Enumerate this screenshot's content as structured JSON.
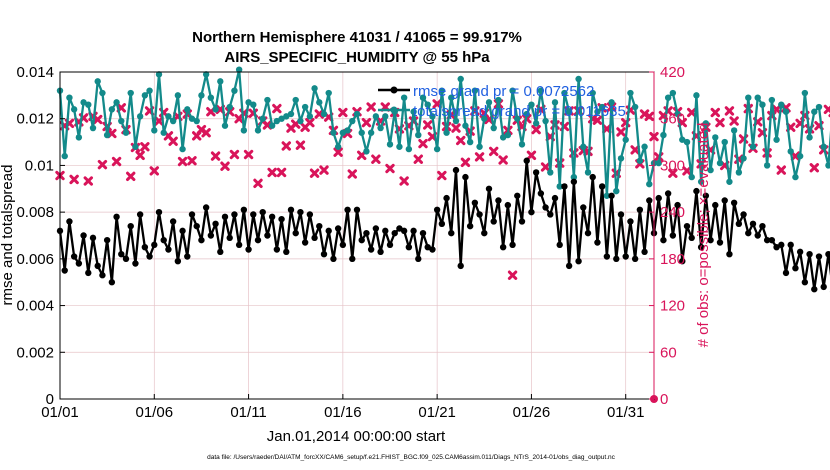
{
  "chart_data": {
    "type": "line",
    "title": "Northern Hemisphere 41031 / 41065 = 99.917%",
    "subtitle": "AIRS_SPECIFIC_HUMIDITY @ 55 hPa",
    "xlabel": "Jan.01,2014 00:00:00 start",
    "ylabel": "rmse and totalspread",
    "y2label": "# of obs: o=possible; ×=evaluated",
    "footnote": "data file: /Users/raeder/DAI/ATM_forcXX/CAM6_setup/f.e21.FHIST_BGC.f09_025.CAM6assim.011/Diags_NTrS_2014-01/obs_diag_output.nc",
    "x_tick_labels": [
      "01/01",
      "01/06",
      "01/11",
      "01/16",
      "01/21",
      "01/26",
      "01/31"
    ],
    "x_tick_days": [
      0,
      5,
      10,
      15,
      20,
      25,
      30
    ],
    "xlim": [
      0,
      31.5
    ],
    "ylim": [
      0,
      0.014
    ],
    "y_ticks": [
      "0",
      "0.002",
      "0.004",
      "0.006",
      "0.008",
      "0.01",
      "0.012",
      "0.014"
    ],
    "y_tick_values": [
      0,
      0.002,
      0.004,
      0.006,
      0.008,
      0.01,
      0.012,
      0.014
    ],
    "y2lim": [
      0,
      420
    ],
    "y2_ticks": [
      "0",
      "60",
      "120",
      "180",
      "240",
      "300",
      "360",
      "420"
    ],
    "y2_tick_values": [
      0,
      60,
      120,
      180,
      240,
      300,
      360,
      420
    ],
    "series": [
      {
        "name": "rmse grand pr = 0.0072562",
        "color": "#000000",
        "axis": "left",
        "start_day": 0,
        "step_days": 0.25,
        "values": [
          0.0072,
          0.0055,
          0.0076,
          0.0061,
          0.0058,
          0.007,
          0.0054,
          0.0069,
          0.0057,
          0.0053,
          0.0068,
          0.005,
          0.0078,
          0.0062,
          0.006,
          0.0074,
          0.0058,
          0.0079,
          0.0065,
          0.0061,
          0.0066,
          0.008,
          0.0068,
          0.0064,
          0.0076,
          0.0059,
          0.0072,
          0.0061,
          0.0079,
          0.0074,
          0.0068,
          0.0082,
          0.007,
          0.0075,
          0.0063,
          0.0078,
          0.0069,
          0.0079,
          0.0066,
          0.0081,
          0.0064,
          0.0079,
          0.0068,
          0.008,
          0.007,
          0.0078,
          0.0064,
          0.0077,
          0.0063,
          0.0081,
          0.0071,
          0.008,
          0.0067,
          0.0079,
          0.0069,
          0.0074,
          0.0062,
          0.0072,
          0.006,
          0.0073,
          0.0066,
          0.0081,
          0.006,
          0.0081,
          0.0068,
          0.0071,
          0.0064,
          0.0073,
          0.0063,
          0.0072,
          0.0066,
          0.0071,
          0.0073,
          0.0072,
          0.0065,
          0.0072,
          0.006,
          0.0071,
          0.0065,
          0.0064,
          0.0081,
          0.0075,
          0.0086,
          0.0071,
          0.0098,
          0.0057,
          0.0095,
          0.0074,
          0.0084,
          0.0079,
          0.0071,
          0.009,
          0.0076,
          0.0085,
          0.0065,
          0.0083,
          0.0066,
          0.0087,
          0.0076,
          0.0102,
          0.008,
          0.0097,
          0.0088,
          0.0082,
          0.0079,
          0.0086,
          0.0066,
          0.0091,
          0.0057,
          0.0093,
          0.0059,
          0.0082,
          0.0071,
          0.0095,
          0.0067,
          0.0091,
          0.0061,
          0.0087,
          0.006,
          0.0079,
          0.0061,
          0.0076,
          0.006,
          0.0081,
          0.0063,
          0.0085,
          0.0071,
          0.0086,
          0.0068,
          0.0088,
          0.007,
          0.0083,
          0.0059,
          0.0074,
          0.0069,
          0.0089,
          0.0065,
          0.0087,
          0.0068,
          0.0083,
          0.0067,
          0.0085,
          0.0062,
          0.0084,
          0.0075,
          0.0079,
          0.0071,
          0.0075,
          0.007,
          0.0074,
          0.0068,
          0.0068,
          0.0065,
          0.0066,
          0.0054,
          0.0066,
          0.0056,
          0.0063,
          0.005,
          0.0062,
          0.0047,
          0.0061,
          0.0048,
          0.0062,
          0.0046,
          0.0063,
          0.0047,
          0.0075,
          0.0065,
          0.0081,
          0.0061,
          0.0086,
          0.0058,
          0.0078,
          0.006,
          0.0071,
          0.0063,
          0.0067,
          0.0061,
          0.0068,
          0.0056,
          0.0072,
          0.0066,
          0.0084,
          0.0074,
          0.0082,
          0.0071,
          0.0082,
          0.0069,
          0.0084,
          0.0062,
          0.0078,
          0.0063,
          0.008,
          0.0066,
          0.0075,
          0.0059,
          0.0073,
          0.0068,
          0.0074,
          0.006,
          0.0072,
          0.0064,
          0.0082,
          0.0067,
          0.0081,
          0.0061,
          0.0068,
          0.0069,
          0.0059,
          0.0073
        ]
      },
      {
        "name": "totalspread grand pr = 0.011635",
        "color": "#138a8a",
        "axis": "left",
        "start_day": 0,
        "step_days": 0.25,
        "values": [
          0.0132,
          0.0104,
          0.0129,
          0.0124,
          0.0112,
          0.0127,
          0.0126,
          0.0116,
          0.0136,
          0.0131,
          0.0113,
          0.0124,
          0.0127,
          0.0119,
          0.0114,
          0.0131,
          0.0108,
          0.0121,
          0.013,
          0.0132,
          0.0115,
          0.0139,
          0.0114,
          0.0121,
          0.0119,
          0.013,
          0.0107,
          0.0124,
          0.012,
          0.0119,
          0.013,
          0.0139,
          0.0129,
          0.0124,
          0.0136,
          0.0117,
          0.0125,
          0.0132,
          0.0141,
          0.0115,
          0.0127,
          0.0126,
          0.0115,
          0.012,
          0.0128,
          0.0117,
          0.0119,
          0.012,
          0.0121,
          0.0122,
          0.0128,
          0.0119,
          0.0125,
          0.0121,
          0.0133,
          0.0127,
          0.0122,
          0.0131,
          0.0114,
          0.0108,
          0.0114,
          0.0115,
          0.0119,
          0.0122,
          0.0114,
          0.0106,
          0.0114,
          0.0121,
          0.0116,
          0.0121,
          0.0109,
          0.0123,
          0.0108,
          0.0129,
          0.0107,
          0.0123,
          0.0113,
          0.0129,
          0.0126,
          0.0121,
          0.0107,
          0.0132,
          0.0114,
          0.0129,
          0.0119,
          0.0137,
          0.0117,
          0.011,
          0.0132,
          0.0108,
          0.012,
          0.0127,
          0.0116,
          0.0128,
          0.0112,
          0.0113,
          0.0132,
          0.012,
          0.0109,
          0.0122,
          0.0126,
          0.0118,
          0.0132,
          0.0119,
          0.0097,
          0.0127,
          0.0091,
          0.0131,
          0.0123,
          0.0095,
          0.0137,
          0.0108,
          0.0097,
          0.0131,
          0.0123,
          0.0125,
          0.0087,
          0.0127,
          0.0089,
          0.0103,
          0.0111,
          0.0131,
          0.0125,
          0.0102,
          0.0108,
          0.0092,
          0.0101,
          0.0101,
          0.0113,
          0.0129,
          0.0131,
          0.0122,
          0.0111,
          0.011,
          0.0095,
          0.013,
          0.0093,
          0.0118,
          0.0098,
          0.0112,
          0.0101,
          0.011,
          0.0093,
          0.0115,
          0.0097,
          0.0103,
          0.0129,
          0.0108,
          0.0129,
          0.0126,
          0.01,
          0.0128,
          0.0111,
          0.0126,
          0.0123,
          0.0106,
          0.0095,
          0.0104,
          0.0131,
          0.0112,
          0.0123,
          0.0125,
          0.0108,
          0.01,
          0.0126,
          0.0111,
          0.0118,
          0.0122,
          0.0128,
          0.0119,
          0.01,
          0.0118,
          0.0099,
          0.0111,
          0.0133,
          0.0103,
          0.0107,
          0.0112,
          0.0098,
          0.0109,
          0.0102,
          0.0131,
          0.0104,
          0.0127,
          0.0106,
          0.013,
          0.0123,
          0.0108,
          0.0129,
          0.0129,
          0.012,
          0.0124,
          0.0118,
          0.0128,
          0.0126,
          0.0122,
          0.0137,
          0.0113,
          0.0108,
          0.013,
          0.0132,
          0.0122,
          0.0124,
          0.0102,
          0.0125,
          0.0112,
          0.0123,
          0.0113,
          0.0129,
          0.0125,
          0.0104,
          0.0111,
          0.0124,
          0.0119,
          0.0109,
          0.0105,
          0.0129
        ]
      },
      {
        "name": "# of obs evaluated",
        "color": "#d9145a",
        "axis": "right",
        "marker": "x",
        "start_day": 0,
        "step_days": 0.25,
        "values": [
          287,
          351,
          354,
          282,
          356,
          361,
          280,
          363,
          359,
          301,
          350,
          341,
          305,
          374,
          346,
          286,
          323,
          313,
          324,
          370,
          293,
          357,
          368,
          338,
          331,
          363,
          305,
          366,
          306,
          338,
          346,
          342,
          369,
          312,
          372,
          299,
          369,
          314,
          360,
          367,
          314,
          367,
          277,
          357,
          352,
          291,
          373,
          291,
          325,
          348,
          353,
          326,
          349,
          355,
          290,
          366,
          294,
          362,
          345,
          317,
          368,
          341,
          289,
          369,
          313,
          355,
          375,
          308,
          357,
          375,
          296,
          368,
          347,
          280,
          351,
          357,
          308,
          328,
          352,
          337,
          379,
          287,
          350,
          365,
          348,
          332,
          304,
          344,
          370,
          311,
          367,
          359,
          318,
          379,
          307,
          345,
          159,
          358,
          350,
          360,
          313,
          346,
          372,
          298,
          337,
          352,
          303,
          350,
          370,
          316,
          370,
          319,
          318,
          360,
          358,
          374,
          347,
          375,
          290,
          343,
          355,
          371,
          320,
          302,
          366,
          363,
          337,
          311,
          364,
          370,
          290,
          369,
          355,
          293,
          368,
          338,
          302,
          349,
          320,
          368,
          355,
          300,
          370,
          357,
          308,
          334,
          373,
          322,
          356,
          342,
          316,
          364,
          372,
          294,
          374,
          349,
          312,
          354,
          364,
          347,
          297,
          351,
          320,
          372,
          368,
          337,
          295,
          362,
          334,
          310,
          364,
          350,
          326,
          354,
          365,
          316,
          357,
          355,
          298,
          364,
          367,
          284,
          366,
          345,
          322,
          371,
          302,
          346,
          337,
          318,
          356,
          379,
          330,
          352,
          328,
          296,
          371,
          356,
          321,
          364,
          357,
          318,
          362,
          351,
          302,
          373,
          360,
          280,
          365,
          346,
          322,
          367,
          356,
          303,
          352,
          337,
          312,
          349,
          345,
          354,
          311,
          357
        ]
      },
      {
        "name": "# of obs possible",
        "color": "#d9145a",
        "axis": "right",
        "marker": "o",
        "last_point": {
          "day": 31.5,
          "value": 0
        }
      }
    ]
  },
  "legend_entries": [
    "rmse grand pr = 0.0072562",
    "totalspread grand pr = 0.011635"
  ]
}
